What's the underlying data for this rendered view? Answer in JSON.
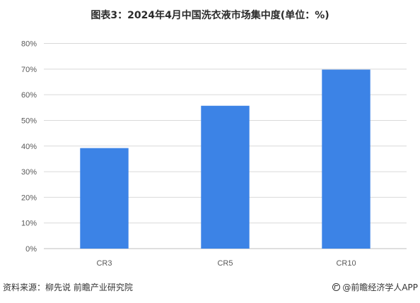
{
  "title": "图表3：2024年4月中国洗衣液市场集中度(单位：%)",
  "footer": {
    "source": "资料来源：柳先说 前瞻产业研究院",
    "brand": "@前瞻经济学人APP",
    "brand_icon": "qianzhan-logo-icon"
  },
  "colors": {
    "bar": "#3c83e6",
    "grid": "#d9d9d9",
    "axis": "#bfbfbf"
  },
  "chart_data": {
    "type": "bar",
    "title": "图表3：2024年4月中国洗衣液市场集中度(单位：%)",
    "categories": [
      "CR3",
      "CR5",
      "CR10"
    ],
    "values": [
      39.2,
      55.7,
      69.8
    ],
    "ylim": [
      0,
      80
    ],
    "yticks": [
      0,
      10,
      20,
      30,
      40,
      50,
      60,
      70,
      80
    ],
    "ytick_labels": [
      "0%",
      "10%",
      "20%",
      "30%",
      "40%",
      "50%",
      "60%",
      "70%",
      "80%"
    ],
    "grid": true,
    "legend": "none"
  }
}
